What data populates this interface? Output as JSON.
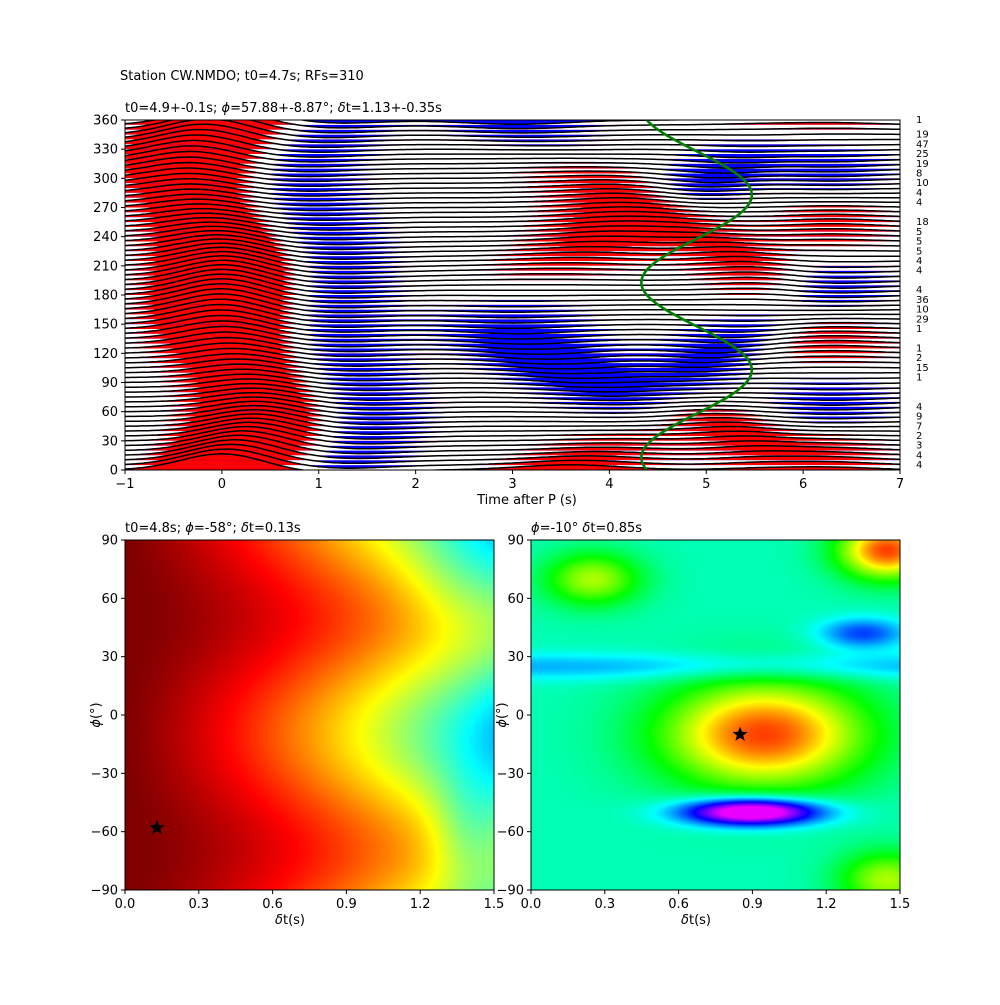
{
  "suptitle": "Station CW.NMDO; t0=4.7s; RFs=310",
  "chart_data": [
    {
      "type": "wiggle",
      "title_parts": [
        "t0=4.9+-0.1s; ",
        "ϕ",
        "=57.88+-8.87°; ",
        "δ",
        "t=1.13+-0.35s"
      ],
      "xlabel": "Time after P (s)",
      "xlim": [
        -1,
        7
      ],
      "ylim": [
        0,
        360
      ],
      "xticks": [
        "−1",
        "0",
        "1",
        "2",
        "3",
        "4",
        "5",
        "6",
        "7"
      ],
      "yticks": [
        "0",
        "30",
        "60",
        "90",
        "120",
        "150",
        "180",
        "210",
        "240",
        "270",
        "300",
        "330",
        "360"
      ],
      "positive_color": "#ff0000",
      "negative_color": "#0000ff",
      "curve_color": "#008000",
      "curve": {
        "t0": 4.9,
        "amplitude": 0.57,
        "phi_deg": 57.88
      },
      "bin_counts": [
        {
          "baz": 360,
          "label": "1"
        },
        {
          "baz": 345,
          "label": "19"
        },
        {
          "baz": 335,
          "label": "47"
        },
        {
          "baz": 325,
          "label": "25"
        },
        {
          "baz": 315,
          "label": "19"
        },
        {
          "baz": 305,
          "label": "8"
        },
        {
          "baz": 295,
          "label": "10"
        },
        {
          "baz": 285,
          "label": "4"
        },
        {
          "baz": 275,
          "label": "4"
        },
        {
          "baz": 255,
          "label": "18"
        },
        {
          "baz": 245,
          "label": "5"
        },
        {
          "baz": 235,
          "label": "5"
        },
        {
          "baz": 225,
          "label": "5"
        },
        {
          "baz": 215,
          "label": "4"
        },
        {
          "baz": 205,
          "label": "4"
        },
        {
          "baz": 185,
          "label": "4"
        },
        {
          "baz": 175,
          "label": "36"
        },
        {
          "baz": 165,
          "label": "10"
        },
        {
          "baz": 155,
          "label": "29"
        },
        {
          "baz": 145,
          "label": "1"
        },
        {
          "baz": 125,
          "label": "1"
        },
        {
          "baz": 115,
          "label": "2"
        },
        {
          "baz": 105,
          "label": "15"
        },
        {
          "baz": 95,
          "label": "1"
        },
        {
          "baz": 65,
          "label": "4"
        },
        {
          "baz": 55,
          "label": "9"
        },
        {
          "baz": 45,
          "label": "7"
        },
        {
          "baz": 35,
          "label": "2"
        },
        {
          "baz": 25,
          "label": "3"
        },
        {
          "baz": 15,
          "label": "4"
        },
        {
          "baz": 5,
          "label": "4"
        }
      ]
    },
    {
      "type": "heatmap",
      "title_parts": [
        "t0=4.8s; ",
        "ϕ",
        "=-58°; ",
        "δ",
        "t=0.13s"
      ],
      "xlabel_parts": [
        "δ",
        "t(s)"
      ],
      "ylabel_parts": [
        "ϕ",
        "(°)"
      ],
      "xlim": [
        0,
        1.5
      ],
      "ylim": [
        -90,
        90
      ],
      "xticks": [
        "0.0",
        "0.3",
        "0.6",
        "0.9",
        "1.2",
        "1.5"
      ],
      "yticks": [
        "−90",
        "−60",
        "−30",
        "0",
        "30",
        "60",
        "90"
      ],
      "best": {
        "dt": 0.13,
        "phi": -58
      },
      "colormap": "jet"
    },
    {
      "type": "heatmap",
      "title_parts": [
        "ϕ",
        "=-10° ",
        "δ",
        "t=0.85s"
      ],
      "xlabel_parts": [
        "δ",
        "t(s)"
      ],
      "ylabel_parts": [
        "ϕ",
        "(°)"
      ],
      "xlim": [
        0,
        1.5
      ],
      "ylim": [
        -90,
        90
      ],
      "xticks": [
        "0.0",
        "0.3",
        "0.6",
        "0.9",
        "1.2",
        "1.5"
      ],
      "yticks": [
        "−90",
        "−60",
        "−30",
        "0",
        "30",
        "60",
        "90"
      ],
      "best": {
        "dt": 0.85,
        "phi": -10
      },
      "colormap": "hsv"
    }
  ]
}
